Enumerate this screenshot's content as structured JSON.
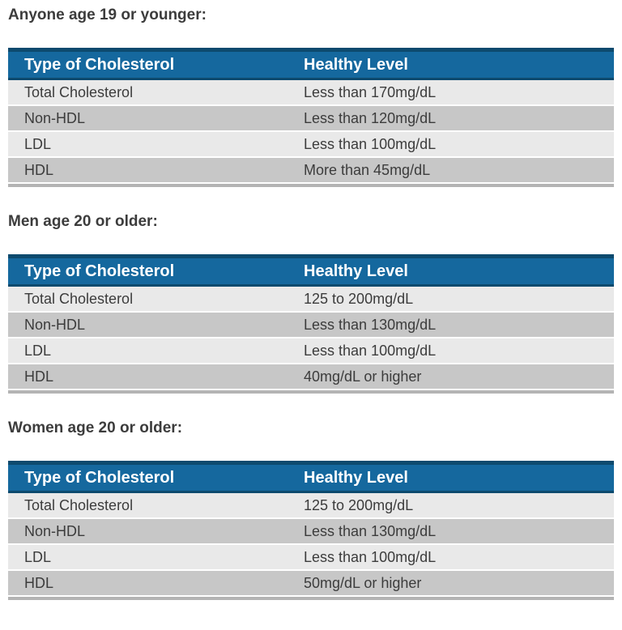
{
  "colors": {
    "header_bg": "#15689e",
    "header_border": "#0d4a6e",
    "header_text": "#ffffff",
    "row_light": "#e9e9e9",
    "row_dark": "#c7c7c7",
    "text_dark": "#3c3c3c",
    "table_bottom_border": "#b4b4b4",
    "page_bg": "#ffffff"
  },
  "sections": [
    {
      "heading": "Anyone age 19 or younger:",
      "table": {
        "columns": [
          "Type of Cholesterol",
          "Healthy Level"
        ],
        "rows": [
          [
            "Total Cholesterol",
            "Less than 170mg/dL"
          ],
          [
            "Non-HDL",
            "Less than 120mg/dL"
          ],
          [
            "LDL",
            "Less than 100mg/dL"
          ],
          [
            "HDL",
            "More than 45mg/dL"
          ]
        ]
      }
    },
    {
      "heading": "Men age 20 or older:",
      "table": {
        "columns": [
          "Type of Cholesterol",
          "Healthy Level"
        ],
        "rows": [
          [
            "Total Cholesterol",
            "125 to 200mg/dL"
          ],
          [
            "Non-HDL",
            "Less than 130mg/dL"
          ],
          [
            "LDL",
            "Less than 100mg/dL"
          ],
          [
            "HDL",
            "40mg/dL or higher"
          ]
        ]
      }
    },
    {
      "heading": "Women age 20 or older:",
      "table": {
        "columns": [
          "Type of Cholesterol",
          "Healthy Level"
        ],
        "rows": [
          [
            "Total Cholesterol",
            "125 to 200mg/dL"
          ],
          [
            "Non-HDL",
            "Less than 130mg/dL"
          ],
          [
            "LDL",
            "Less than 100mg/dL"
          ],
          [
            "HDL",
            "50mg/dL or higher"
          ]
        ]
      }
    }
  ]
}
